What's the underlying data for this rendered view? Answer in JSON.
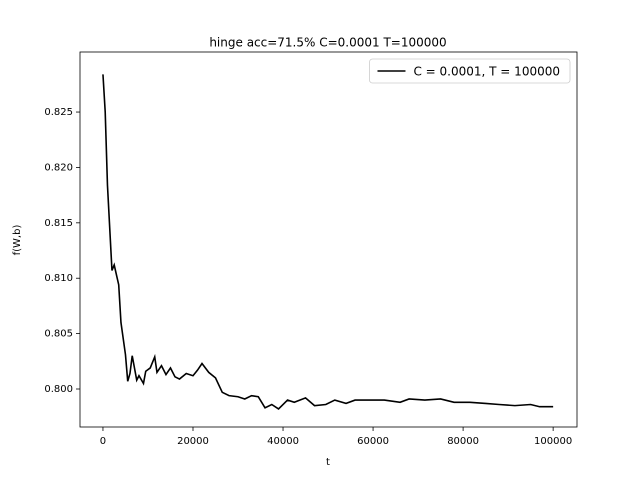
{
  "chart_data": {
    "type": "line",
    "title": "hinge acc=71.5% C=0.0001 T=100000",
    "x_label": "t",
    "y_label": "f(W,b)",
    "x": [
      0,
      500,
      1000,
      2000,
      2500,
      3000,
      3500,
      4000,
      5000,
      5500,
      6000,
      6500,
      7500,
      8000,
      9000,
      9500,
      10500,
      11500,
      12000,
      13000,
      14000,
      15000,
      16000,
      17000,
      18500,
      20000,
      21000,
      22000,
      23500,
      25000,
      26500,
      28000,
      30000,
      31500,
      33000,
      34500,
      36000,
      37500,
      39000,
      41000,
      42500,
      45000,
      47000,
      49500,
      51500,
      54000,
      56000,
      59500,
      62500,
      66000,
      68000,
      71500,
      75000,
      78000,
      81500,
      85000,
      88000,
      91500,
      95000,
      97000,
      100000
    ],
    "series": [
      {
        "name": "C = 0.0001, T = 100000",
        "color": "#000000",
        "values": [
          0.8284,
          0.825,
          0.8184,
          0.8107,
          0.8112,
          0.8103,
          0.8094,
          0.806,
          0.8031,
          0.8007,
          0.8014,
          0.803,
          0.8008,
          0.8012,
          0.8005,
          0.8016,
          0.8019,
          0.8029,
          0.8015,
          0.8021,
          0.8013,
          0.8019,
          0.8011,
          0.8009,
          0.8014,
          0.8012,
          0.8017,
          0.8023,
          0.8015,
          0.801,
          0.7997,
          0.7994,
          0.7993,
          0.7991,
          0.7994,
          0.7993,
          0.7983,
          0.7986,
          0.7982,
          0.799,
          0.7988,
          0.7992,
          0.7985,
          0.7986,
          0.799,
          0.7987,
          0.799,
          0.799,
          0.799,
          0.7988,
          0.7991,
          0.799,
          0.7991,
          0.7988,
          0.7988,
          0.7987,
          0.7986,
          0.7985,
          0.7986,
          0.7984,
          0.7984
        ]
      }
    ],
    "xlim": [
      -5100,
      105300
    ],
    "ylim": [
      0.79657,
      0.83042
    ],
    "xticks": [
      0,
      20000,
      40000,
      60000,
      80000,
      100000
    ],
    "yticks": [
      {
        "value": 0.8,
        "label": "0.800"
      },
      {
        "value": 0.805,
        "label": "0.805"
      },
      {
        "value": 0.81,
        "label": "0.810"
      },
      {
        "value": 0.815,
        "label": "0.815"
      },
      {
        "value": 0.82,
        "label": "0.820"
      },
      {
        "value": 0.825,
        "label": "0.825"
      }
    ],
    "legend": "upper right",
    "grid": false
  }
}
